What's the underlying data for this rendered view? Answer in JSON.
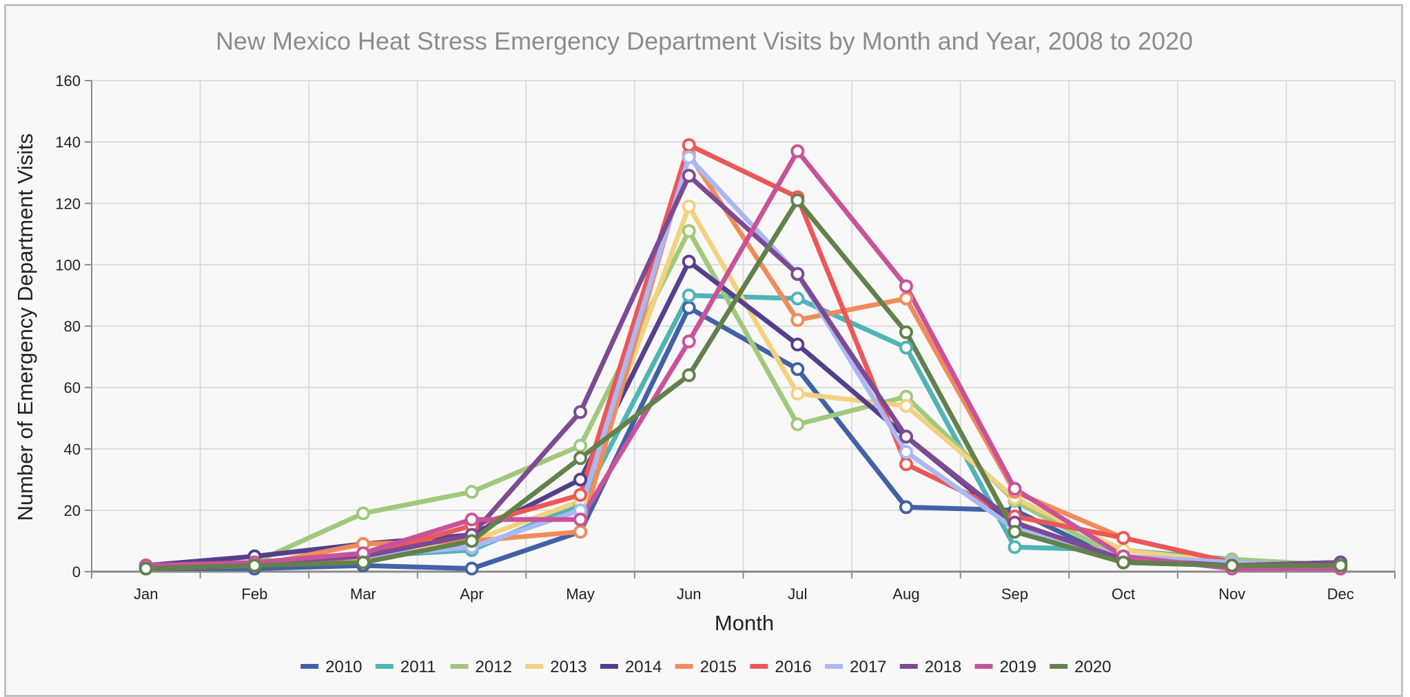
{
  "chart_data": {
    "type": "line",
    "title": "New Mexico Heat Stress Emergency Department Visits by Month and Year, 2008 to 2020",
    "xlabel": "Month",
    "ylabel": "Number of Emergency Department Visits",
    "categories": [
      "Jan",
      "Feb",
      "Mar",
      "Apr",
      "May",
      "Jun",
      "Jul",
      "Aug",
      "Sep",
      "Oct",
      "Nov",
      "Dec"
    ],
    "ylim": [
      0,
      160
    ],
    "yticks": [
      0,
      20,
      40,
      60,
      80,
      100,
      120,
      140,
      160
    ],
    "ytick_labels": [
      "0",
      "20",
      "40",
      "60",
      "80",
      "100",
      "120",
      "140",
      "160"
    ],
    "grid": true,
    "legend_position": "bottom",
    "series": [
      {
        "name": "2010",
        "color": "#4361a5",
        "values": [
          1,
          1,
          2,
          1,
          13,
          86,
          66,
          21,
          20,
          3,
          2,
          2
        ]
      },
      {
        "name": "2011",
        "color": "#4fb4b6",
        "values": [
          2,
          2,
          5,
          7,
          22,
          90,
          89,
          73,
          8,
          7,
          4,
          2
        ]
      },
      {
        "name": "2012",
        "color": "#a1c97d",
        "values": [
          1,
          3,
          19,
          26,
          41,
          111,
          48,
          57,
          23,
          4,
          4,
          2
        ]
      },
      {
        "name": "2013",
        "color": "#f4d180",
        "values": [
          1,
          2,
          4,
          10,
          23,
          119,
          58,
          54,
          24,
          7,
          3,
          2
        ]
      },
      {
        "name": "2014",
        "color": "#553f8c",
        "values": [
          2,
          5,
          9,
          12,
          30,
          101,
          74,
          44,
          15,
          4,
          2,
          3
        ]
      },
      {
        "name": "2015",
        "color": "#f08c5a",
        "values": [
          1,
          2,
          9,
          10,
          13,
          136,
          82,
          89,
          26,
          11,
          3,
          2
        ]
      },
      {
        "name": "2016",
        "color": "#ec5757",
        "values": [
          1,
          2,
          5,
          15,
          25,
          139,
          122,
          35,
          18,
          11,
          3,
          2
        ]
      },
      {
        "name": "2017",
        "color": "#aab8f5",
        "values": [
          1,
          3,
          5,
          8,
          20,
          135,
          97,
          39,
          14,
          5,
          3,
          2
        ]
      },
      {
        "name": "2018",
        "color": "#7d4a93",
        "values": [
          2,
          3,
          5,
          12,
          52,
          129,
          97,
          44,
          16,
          4,
          2,
          3
        ]
      },
      {
        "name": "2019",
        "color": "#c8539a",
        "values": [
          2,
          3,
          6,
          17,
          17,
          75,
          137,
          93,
          27,
          5,
          1,
          1
        ]
      },
      {
        "name": "2020",
        "color": "#62814b",
        "values": [
          1,
          2,
          3,
          10,
          37,
          64,
          121,
          78,
          13,
          3,
          2,
          2
        ]
      }
    ]
  }
}
